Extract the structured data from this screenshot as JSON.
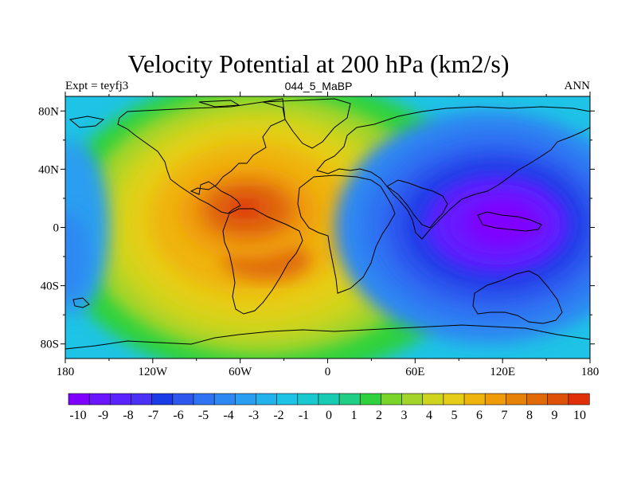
{
  "chart_data": {
    "type": "heatmap",
    "title": "Velocity Potential at 200 hPa (km2/s)",
    "left_string": "Expt = teyfj3",
    "center_string": "044_5_MaBP",
    "right_string": "ANN",
    "xlabel": "",
    "ylabel": "",
    "x_ticks": [
      {
        "value": -180,
        "label": "180"
      },
      {
        "value": -120,
        "label": "120W"
      },
      {
        "value": -60,
        "label": "60W"
      },
      {
        "value": 0,
        "label": "0"
      },
      {
        "value": 60,
        "label": "60E"
      },
      {
        "value": 120,
        "label": "120E"
      },
      {
        "value": 180,
        "label": "180"
      }
    ],
    "y_ticks": [
      {
        "value": 80,
        "label": "80N"
      },
      {
        "value": 40,
        "label": "40N"
      },
      {
        "value": 0,
        "label": "0"
      },
      {
        "value": -40,
        "label": "40S"
      },
      {
        "value": -80,
        "label": "80S"
      }
    ],
    "xlim": [
      -180,
      180
    ],
    "ylim": [
      -90,
      90
    ],
    "colorbar": {
      "labels": [
        "-10",
        "-9",
        "-8",
        "-7",
        "-6",
        "-5",
        "-4",
        "-3",
        "-2",
        "-1",
        "0",
        "1",
        "2",
        "3",
        "4",
        "5",
        "6",
        "7",
        "8",
        "9",
        "10"
      ],
      "colors": [
        "#8000ff",
        "#6a16ff",
        "#5a23ff",
        "#4b30f6",
        "#1a3ce6",
        "#2e57ee",
        "#2f72f2",
        "#2d88f2",
        "#2a9ef0",
        "#24b2ec",
        "#1ec3e6",
        "#1ac8cf",
        "#1acbb4",
        "#20cf85",
        "#2fd23e",
        "#7ad52a",
        "#a3d42a",
        "#cfd41f",
        "#e6cd17",
        "#efb40d",
        "#ef9c08",
        "#e68208",
        "#e06a08",
        "#de5208",
        "#e0300a"
      ],
      "min": -10,
      "max": 10,
      "step": 1
    },
    "features": [
      {
        "name": "max-center",
        "lon": -55,
        "lat": 12,
        "value": 10
      },
      {
        "name": "secondary-max",
        "lon": -40,
        "lat": -22,
        "value": 8
      },
      {
        "name": "min-center",
        "lon": 115,
        "lat": 2,
        "value": -10
      }
    ]
  }
}
